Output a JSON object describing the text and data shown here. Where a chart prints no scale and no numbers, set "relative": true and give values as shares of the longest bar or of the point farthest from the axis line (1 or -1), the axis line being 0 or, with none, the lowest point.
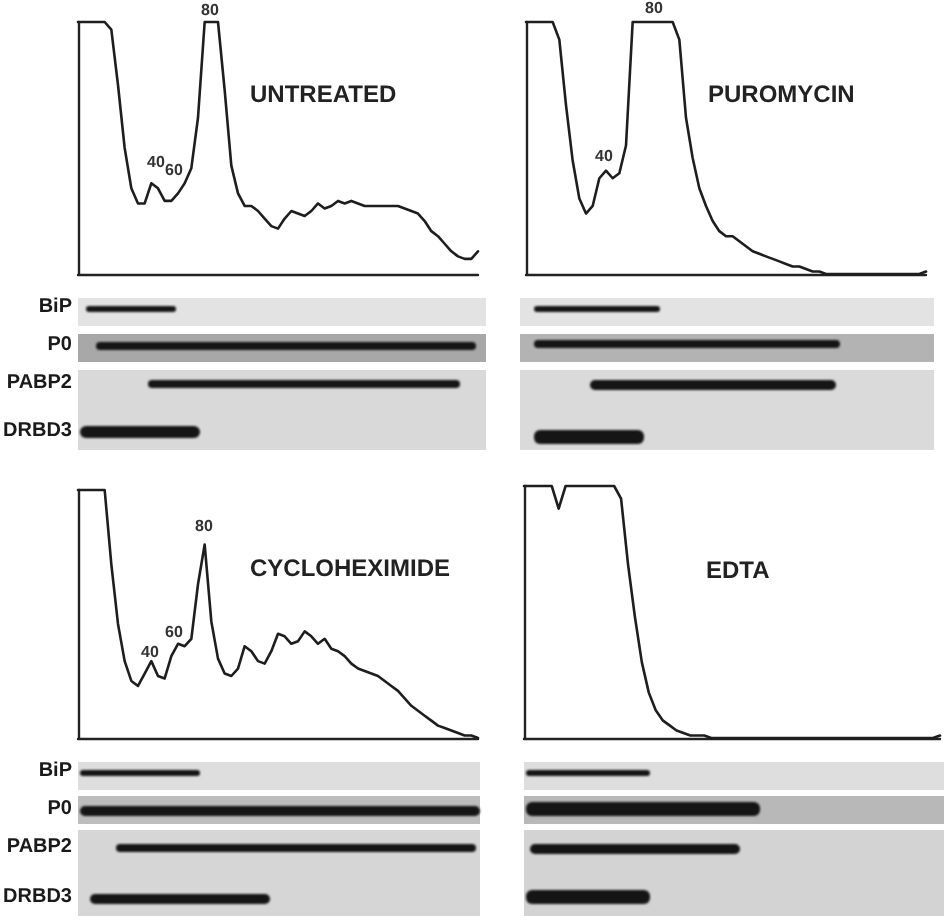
{
  "chart_data": [
    {
      "type": "line",
      "title": "UNTREATED",
      "relative": true,
      "color": "#1e1e1e",
      "categories": [
        null,
        null,
        null,
        null,
        null,
        null,
        null,
        null,
        null,
        null,
        null,
        null,
        null,
        null,
        null,
        null,
        null,
        null,
        null,
        null,
        null,
        null,
        null,
        null,
        null,
        null,
        null,
        null,
        null,
        null,
        null,
        null,
        null,
        null,
        null,
        null,
        null,
        null,
        null,
        null,
        null,
        null,
        null,
        null,
        null,
        null,
        null,
        null,
        null,
        null,
        null,
        null,
        null,
        null,
        null,
        null,
        null,
        null,
        null,
        null,
        null
      ],
      "values": [
        1,
        1,
        1,
        1,
        1,
        0.97,
        0.75,
        0.5,
        0.34,
        0.28,
        0.28,
        0.36,
        0.34,
        0.29,
        0.29,
        0.32,
        0.36,
        0.42,
        0.62,
        1,
        1,
        1,
        0.73,
        0.43,
        0.32,
        0.27,
        0.27,
        0.25,
        0.22,
        0.19,
        0.18,
        0.22,
        0.25,
        0.24,
        0.23,
        0.25,
        0.28,
        0.26,
        0.27,
        0.29,
        0.28,
        0.29,
        0.28,
        0.27,
        0.27,
        0.27,
        0.27,
        0.27,
        0.27,
        0.26,
        0.25,
        0.24,
        0.21,
        0.17,
        0.15,
        0.12,
        0.09,
        0.07,
        0.06,
        0.06,
        0.09
      ],
      "annotations": [
        "40",
        "60",
        "80",
        "BiP",
        "P0",
        "PABP2",
        "DRBD3"
      ]
    },
    {
      "type": "line",
      "title": "PUROMYCIN",
      "relative": true,
      "color": "#1e1e1e",
      "categories": [
        null,
        null,
        null,
        null,
        null,
        null,
        null,
        null,
        null,
        null,
        null,
        null,
        null,
        null,
        null,
        null,
        null,
        null,
        null,
        null,
        null,
        null,
        null,
        null,
        null,
        null,
        null,
        null,
        null,
        null,
        null,
        null,
        null,
        null,
        null,
        null,
        null,
        null,
        null,
        null,
        null,
        null,
        null,
        null,
        null,
        null,
        null,
        null,
        null,
        null,
        null,
        null,
        null,
        null,
        null,
        null,
        null,
        null,
        null,
        null,
        null
      ],
      "values": [
        1,
        1,
        1,
        1,
        1,
        0.93,
        0.67,
        0.45,
        0.3,
        0.24,
        0.27,
        0.38,
        0.41,
        0.38,
        0.4,
        0.51,
        1,
        1,
        1,
        1,
        1,
        1,
        1,
        0.93,
        0.62,
        0.46,
        0.34,
        0.27,
        0.21,
        0.17,
        0.15,
        0.15,
        0.13,
        0.11,
        0.09,
        0.08,
        0.07,
        0.06,
        0.05,
        0.04,
        0.03,
        0.03,
        0.02,
        0.01,
        0.01,
        0,
        0,
        0,
        0,
        0,
        0,
        0,
        0,
        0,
        0,
        0,
        0,
        0,
        0,
        0,
        0.01
      ],
      "annotations": [
        "40",
        "80"
      ]
    },
    {
      "type": "line",
      "title": "CYCLOHEXIMIDE",
      "relative": true,
      "color": "#1e1e1e",
      "categories": [
        null,
        null,
        null,
        null,
        null,
        null,
        null,
        null,
        null,
        null,
        null,
        null,
        null,
        null,
        null,
        null,
        null,
        null,
        null,
        null,
        null,
        null,
        null,
        null,
        null,
        null,
        null,
        null,
        null,
        null,
        null,
        null,
        null,
        null,
        null,
        null,
        null,
        null,
        null,
        null,
        null,
        null,
        null,
        null,
        null,
        null,
        null,
        null,
        null,
        null,
        null,
        null,
        null,
        null,
        null,
        null,
        null,
        null,
        null,
        null,
        null
      ],
      "values": [
        1,
        1,
        1,
        1,
        1,
        0.7,
        0.46,
        0.31,
        0.23,
        0.21,
        0.26,
        0.31,
        0.25,
        0.24,
        0.33,
        0.38,
        0.37,
        0.4,
        0.62,
        0.78,
        0.47,
        0.32,
        0.26,
        0.25,
        0.28,
        0.37,
        0.35,
        0.31,
        0.3,
        0.35,
        0.42,
        0.41,
        0.38,
        0.39,
        0.43,
        0.41,
        0.38,
        0.4,
        0.36,
        0.35,
        0.33,
        0.3,
        0.28,
        0.27,
        0.26,
        0.25,
        0.23,
        0.21,
        0.19,
        0.16,
        0.13,
        0.11,
        0.09,
        0.07,
        0.05,
        0.04,
        0.03,
        0.02,
        0.01,
        0.01,
        0
      ],
      "annotations": [
        "40",
        "60",
        "80",
        "BiP",
        "P0",
        "PABP2",
        "DRBD3"
      ]
    },
    {
      "type": "line",
      "title": "EDTA",
      "relative": true,
      "color": "#1e1e1e",
      "categories": [
        null,
        null,
        null,
        null,
        null,
        null,
        null,
        null,
        null,
        null,
        null,
        null,
        null,
        null,
        null,
        null,
        null,
        null,
        null,
        null,
        null,
        null,
        null,
        null,
        null,
        null,
        null,
        null,
        null,
        null,
        null,
        null,
        null,
        null,
        null,
        null,
        null,
        null,
        null,
        null,
        null,
        null,
        null,
        null,
        null,
        null,
        null,
        null,
        null,
        null,
        null,
        null,
        null,
        null,
        null,
        null,
        null,
        null,
        null,
        null,
        null
      ],
      "values": [
        1,
        1,
        1,
        1,
        1,
        0.91,
        1,
        1,
        1,
        1,
        1,
        1,
        1,
        1,
        0.95,
        0.69,
        0.48,
        0.3,
        0.18,
        0.11,
        0.07,
        0.05,
        0.03,
        0.02,
        0.01,
        0.01,
        0.01,
        0,
        0,
        0,
        0,
        0,
        0,
        0,
        0,
        0,
        0,
        0,
        0,
        0,
        0,
        0,
        0,
        0,
        0,
        0,
        0,
        0,
        0,
        0,
        0,
        0,
        0,
        0,
        0,
        0,
        0,
        0,
        0,
        0,
        0.01
      ]
    }
  ]
}
